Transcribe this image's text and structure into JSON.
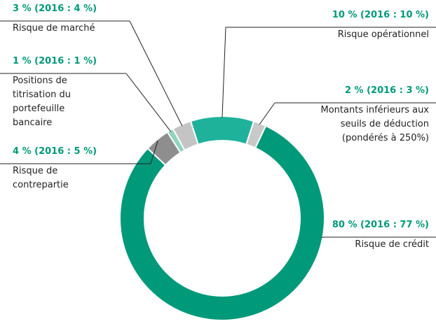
{
  "chart_data": {
    "type": "pie",
    "categories": [
      "Risque opérationnel",
      "Montants inférieurs aux seuils de déduction (pondérés à 250%)",
      "Risque de crédit",
      "Risque de contrepartie",
      "Positions de titrisation du portefeuille bancaire",
      "Risque de marché"
    ],
    "values": [
      10,
      2,
      80,
      4,
      1,
      3
    ],
    "values_2016": [
      10,
      3,
      77,
      5,
      1,
      4
    ],
    "value_labels": [
      "10 % (2016 : 10 %)",
      "2 % (2016 : 3 %)",
      "80 % (2016 : 77 %)",
      "4 % (2016 : 5 %)",
      "1 % (2016 : 1 %)",
      "3 % (2016 : 4 %)"
    ],
    "colors": [
      "#1fb29a",
      "#c9c9c9",
      "#00997a",
      "#8e8e8e",
      "#8fd3c0",
      "#c4c4c4"
    ]
  }
}
